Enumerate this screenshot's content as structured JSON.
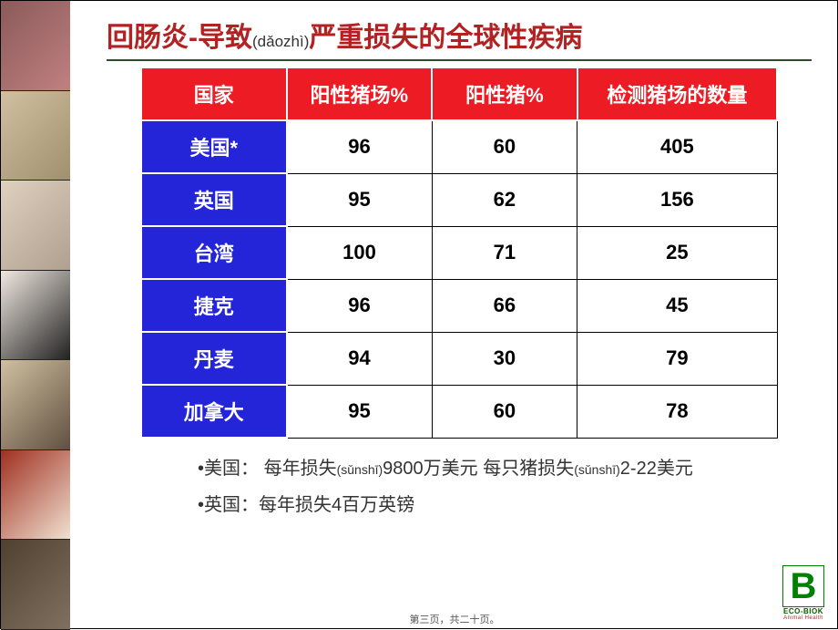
{
  "title": {
    "part1": "回肠炎-导致",
    "pinyin": "(dǎozhì)",
    "part2": "严重损失的全球性疾病",
    "color_main": "#b22222"
  },
  "table": {
    "header_bg": "#ed1c24",
    "rowheader_bg": "#2424d8",
    "columns": [
      "国家",
      "阳性猪场%",
      "阳性猪%",
      "检测猪场的数量"
    ],
    "col_widths": [
      "160px",
      "160px",
      "160px",
      "220px"
    ],
    "rows": [
      {
        "country": "美国*",
        "farm_pct": "96",
        "pig_pct": "60",
        "tested": "405"
      },
      {
        "country": "英国",
        "farm_pct": "95",
        "pig_pct": "62",
        "tested": "156"
      },
      {
        "country": "台湾",
        "farm_pct": "100",
        "pig_pct": "71",
        "tested": "25"
      },
      {
        "country": "捷克",
        "farm_pct": "96",
        "pig_pct": "66",
        "tested": "45"
      },
      {
        "country": "丹麦",
        "farm_pct": "94",
        "pig_pct": "30",
        "tested": "79"
      },
      {
        "country": "加拿大",
        "farm_pct": "95",
        "pig_pct": "60",
        "tested": "78"
      }
    ]
  },
  "notes": {
    "line1_prefix": "•美国：",
    "line1_a": " 每年损失",
    "line1_pinyin": "(sǔnshī)",
    "line1_b": "9800万美元  每只猪损失",
    "line1_c": "2-22美元",
    "line2_prefix": "•英国：",
    "line2_text": "每年损失4百万英镑"
  },
  "footer": "第三页，共二十页。",
  "logo": {
    "letter": "B",
    "brand": "ECO-BIOK",
    "tagline": "Animal Health"
  }
}
